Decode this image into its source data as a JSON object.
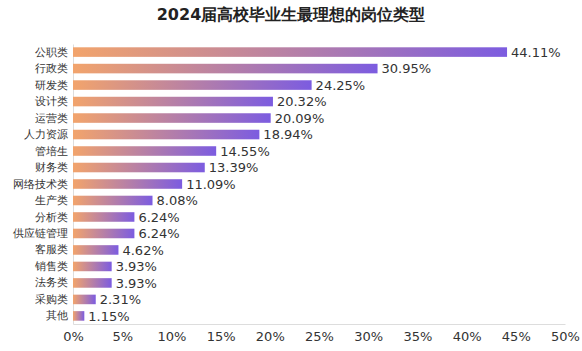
{
  "chart_data": {
    "type": "bar",
    "orientation": "horizontal",
    "title": "2024届高校毕业生最理想的岗位类型",
    "categories": [
      "公职类",
      "行政类",
      "研发类",
      "设计类",
      "运营类",
      "人力资源",
      "管培生",
      "财务类",
      "网络技术类",
      "生产类",
      "分析类",
      "供应链管理",
      "客服类",
      "销售类",
      "法务类",
      "采购类",
      "其他"
    ],
    "values": [
      44.11,
      30.95,
      24.25,
      20.32,
      20.09,
      18.94,
      14.55,
      13.39,
      11.09,
      8.08,
      6.24,
      6.24,
      4.62,
      3.93,
      3.93,
      2.31,
      1.15
    ],
    "value_labels": [
      "44.11%",
      "30.95%",
      "24.25%",
      "20.32%",
      "20.09%",
      "18.94%",
      "14.55%",
      "13.39%",
      "11.09%",
      "8.08%",
      "6.24%",
      "6.24%",
      "4.62%",
      "3.93%",
      "3.93%",
      "2.31%",
      "1.15%"
    ],
    "color": "#7c5ce0",
    "xlim": [
      0,
      50
    ],
    "xticks": [
      {
        "value": 0,
        "label": "0%"
      },
      {
        "value": 5,
        "label": "5%"
      },
      {
        "value": 10,
        "label": "10%"
      },
      {
        "value": 15,
        "label": "15%"
      },
      {
        "value": 20,
        "label": "20%"
      },
      {
        "value": 25,
        "label": "25%"
      },
      {
        "value": 30,
        "label": "30%"
      },
      {
        "value": 35,
        "label": "35%"
      },
      {
        "value": 40,
        "label": "40%"
      },
      {
        "value": 45,
        "label": "45%"
      },
      {
        "value": 50,
        "label": "50%"
      }
    ],
    "grid": false,
    "data_labels": true
  }
}
